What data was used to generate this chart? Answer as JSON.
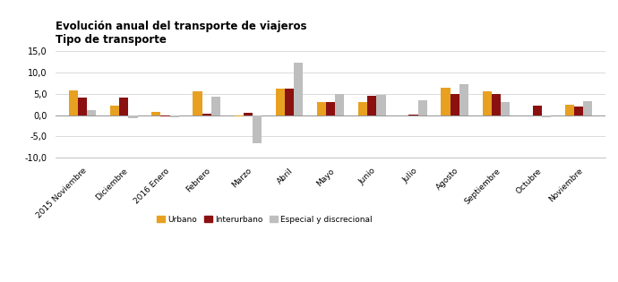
{
  "title_line1": "Evolución anual del transporte de viajeros",
  "title_line2": "Tipo de transporte",
  "categories": [
    "2015 Noviembre",
    "Diciembre",
    "2016 Enero",
    "Febrero",
    "Marzo",
    "Abril",
    "Mayo",
    "Junio",
    "Julio",
    "Agosto",
    "Septiembre",
    "Octubre",
    "Noviembre"
  ],
  "urbano": [
    5.8,
    2.3,
    0.7,
    5.5,
    -0.3,
    6.1,
    3.0,
    3.0,
    -0.2,
    6.4,
    5.5,
    -0.1,
    2.4
  ],
  "interurbano": [
    4.0,
    4.0,
    -0.3,
    0.3,
    0.5,
    6.2,
    3.0,
    4.5,
    0.1,
    5.0,
    5.0,
    2.3,
    2.0
  ],
  "especial": [
    1.2,
    -0.8,
    -0.5,
    4.2,
    -6.5,
    12.3,
    5.0,
    4.8,
    3.5,
    7.3,
    3.0,
    -0.5,
    3.2
  ],
  "color_urbano": "#E8A020",
  "color_interurbano": "#8B1010",
  "color_especial": "#BEBEBE",
  "ylim": [
    -10.0,
    15.0
  ],
  "yticks": [
    -10.0,
    -5.0,
    0.0,
    5.0,
    10.0,
    15.0
  ],
  "legend_urbano": "Urbano",
  "legend_interurbano": "Interurbano",
  "legend_especial": "Especial y discrecional",
  "bar_width": 0.22
}
